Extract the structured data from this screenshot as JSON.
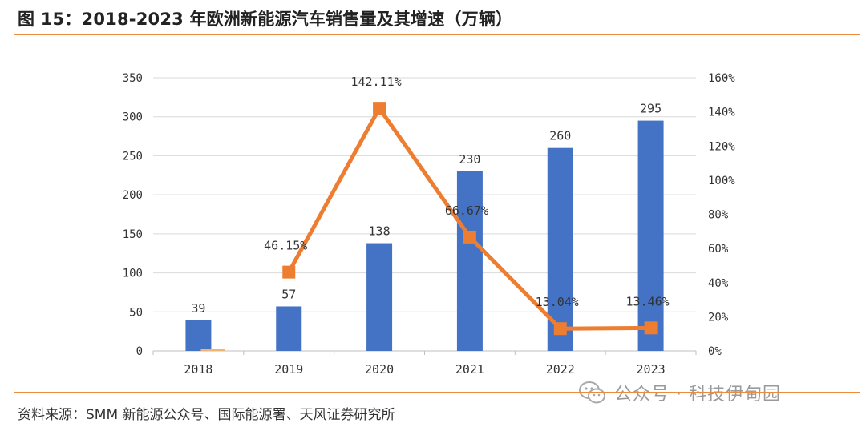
{
  "title": "图 15：2018-2023 年欧洲新能源汽车销售量及其增速（万辆）",
  "source": "资料来源：SMM 新能源公众号、国际能源署、天风证券研究所",
  "watermark": "公众号 · 科技伊甸园",
  "colors": {
    "bar": "#4472c4",
    "line": "#ed7d31",
    "rule": "#ee8a3c",
    "grid": "#d9d9d9"
  },
  "chart_data": {
    "type": "bar+line",
    "categories": [
      "2018",
      "2019",
      "2020",
      "2021",
      "2022",
      "2023"
    ],
    "series": [
      {
        "type": "bar",
        "axis": "left",
        "values": [
          39,
          57,
          138,
          230,
          260,
          295
        ],
        "labels": [
          "39",
          "57",
          "138",
          "230",
          "260",
          "295"
        ]
      },
      {
        "type": "line",
        "axis": "right",
        "values": [
          null,
          46.15,
          142.11,
          66.67,
          13.04,
          13.46
        ],
        "labels": [
          "",
          "46.15%",
          "142.11%",
          "66.67%",
          "13.04%",
          "13.46%"
        ]
      }
    ],
    "y_left": {
      "min": 0,
      "max": 350,
      "ticks": [
        "0",
        "50",
        "100",
        "150",
        "200",
        "250",
        "300",
        "350"
      ]
    },
    "y_right": {
      "min": 0,
      "max": 160,
      "ticks": [
        "0%",
        "20%",
        "40%",
        "60%",
        "80%",
        "100%",
        "120%",
        "140%",
        "160%"
      ]
    },
    "grid": true,
    "legend": "none"
  }
}
